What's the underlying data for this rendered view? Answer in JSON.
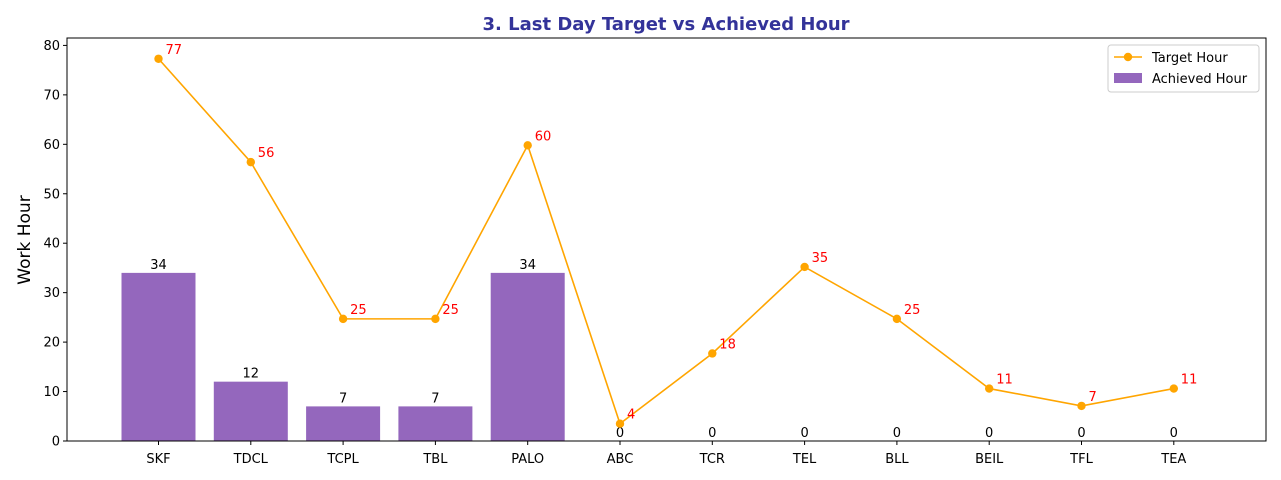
{
  "chart_data": {
    "type": "bar",
    "title": "3. Last Day Target vs Achieved Hour",
    "xlabel": "",
    "ylabel": "Work Hour",
    "ylim": [
      0,
      81.5
    ],
    "yticks": [
      0,
      10,
      20,
      30,
      40,
      50,
      60,
      70,
      80
    ],
    "categories": [
      "SKF",
      "TDCL",
      "TCPL",
      "TBL",
      "PALO",
      "ABC",
      "TCR",
      "TEL",
      "BLL",
      "BEIL",
      "TFL",
      "TEA"
    ],
    "series": [
      {
        "name": "Target Hour",
        "kind": "line",
        "color": "#FFA500",
        "values": [
          77.3,
          56.4,
          24.7,
          24.7,
          59.8,
          3.5,
          17.7,
          35.2,
          24.7,
          10.6,
          7.1,
          10.6
        ],
        "labels": [
          "77",
          "56",
          "25",
          "25",
          "60",
          "4",
          "18",
          "35",
          "25",
          "11",
          "7",
          "11"
        ]
      },
      {
        "name": "Achieved Hour",
        "kind": "bar",
        "color": "#9467BD",
        "values": [
          34,
          12,
          7,
          7,
          34,
          0,
          0,
          0,
          0,
          0,
          0,
          0
        ],
        "labels": [
          "34",
          "12",
          "7",
          "7",
          "34",
          "0",
          "0",
          "0",
          "0",
          "0",
          "0",
          "0"
        ]
      }
    ],
    "legend": {
      "placement": "top-right"
    },
    "grid": false,
    "label_color_line": "#FF0000",
    "title_color": "#333399"
  }
}
